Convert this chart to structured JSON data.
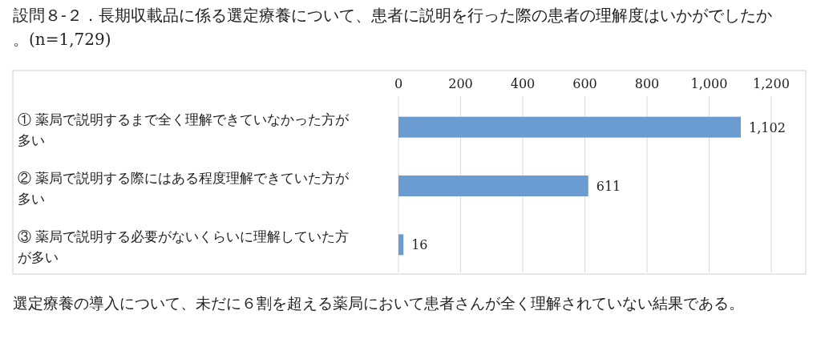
{
  "chart_data": {
    "type": "bar",
    "orientation": "horizontal",
    "title": "設問８-２．長期収載品に係る選定療養について、患者に説明を行った際の患者の理解度はいかがでしたか。(n=1,729)",
    "categories": [
      "① 薬局で説明するまで全く理解できていなかった方が多い",
      "② 薬局で説明する際にはある程度理解できていた方が多い",
      "③ 薬局で説明する必要がないくらいに理解していた方が多い"
    ],
    "values": [
      1102,
      611,
      16
    ],
    "value_labels": [
      "1,102",
      "611",
      "16"
    ],
    "color": "#6a9bd1",
    "xlim": [
      0,
      1200
    ],
    "xticks": [
      0,
      200,
      400,
      600,
      800,
      {
        "value": 1000,
        "label": "1,000"
      },
      {
        "value": 1200,
        "label": "1,200"
      }
    ],
    "grid": "x",
    "annotations": [
      "選定療養の導入について、未だに６割を超える薬局において患者さんが全く理解されていない結果である。"
    ]
  }
}
